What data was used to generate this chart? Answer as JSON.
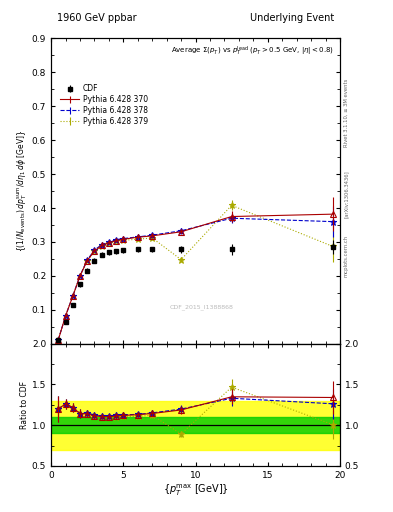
{
  "title_left": "1960 GeV ppbar",
  "title_right": "Underlying Event",
  "plot_title": "Average $\\Sigma(p_T)$ vs $p_T^{\\rm lead}$ ($p_T > 0.5$ GeV, $|\\eta| < 0.8$)",
  "xlabel": "$\\{p_T^{\\max}$ [GeV]$\\}$",
  "ylabel": "$\\{(1/N_{\\rm events})\\, dp_T^{\\rm sum}/d\\eta_1\\, d\\phi$ [GeV]$\\}$",
  "ylabel_ratio": "Ratio to CDF",
  "watermark": "CDF_2015_I1388868",
  "right_label": "Rivet 3.1.10, ≥ 3M events",
  "arxiv_label": "[arXiv:1306.3436]",
  "mcplots_label": "mcplots.cern.ch",
  "xlim": [
    0,
    20
  ],
  "ylim_main": [
    0,
    0.9
  ],
  "ylim_ratio": [
    0.5,
    2.0
  ],
  "cdf_x": [
    0.5,
    1.0,
    1.5,
    2.0,
    2.5,
    3.0,
    3.5,
    4.0,
    4.5,
    5.0,
    6.0,
    7.0,
    9.0,
    12.5,
    19.5
  ],
  "cdf_y": [
    0.01,
    0.065,
    0.115,
    0.175,
    0.215,
    0.245,
    0.262,
    0.27,
    0.273,
    0.275,
    0.278,
    0.278,
    0.278,
    0.278,
    0.285
  ],
  "cdf_yerr": [
    0.001,
    0.003,
    0.005,
    0.007,
    0.007,
    0.007,
    0.007,
    0.007,
    0.007,
    0.007,
    0.007,
    0.007,
    0.01,
    0.015,
    0.02
  ],
  "p370_x": [
    0.5,
    1.0,
    1.5,
    2.0,
    2.5,
    3.0,
    3.5,
    4.0,
    4.5,
    5.0,
    6.0,
    7.0,
    9.0,
    12.5,
    19.5
  ],
  "p370_y": [
    0.012,
    0.082,
    0.14,
    0.2,
    0.245,
    0.273,
    0.29,
    0.298,
    0.304,
    0.308,
    0.314,
    0.318,
    0.33,
    0.375,
    0.382
  ],
  "p370_yerr": [
    0.001,
    0.002,
    0.003,
    0.004,
    0.004,
    0.004,
    0.004,
    0.004,
    0.004,
    0.004,
    0.004,
    0.005,
    0.007,
    0.015,
    0.05
  ],
  "p378_x": [
    0.5,
    1.0,
    1.5,
    2.0,
    2.5,
    3.0,
    3.5,
    4.0,
    4.5,
    5.0,
    6.0,
    7.0,
    9.0,
    12.5,
    19.5
  ],
  "p378_y": [
    0.012,
    0.082,
    0.14,
    0.2,
    0.247,
    0.276,
    0.292,
    0.3,
    0.307,
    0.31,
    0.315,
    0.32,
    0.333,
    0.37,
    0.36
  ],
  "p378_yerr": [
    0.001,
    0.002,
    0.003,
    0.004,
    0.004,
    0.004,
    0.004,
    0.004,
    0.004,
    0.004,
    0.004,
    0.005,
    0.007,
    0.015,
    0.045
  ],
  "p379_x": [
    0.5,
    1.0,
    1.5,
    2.0,
    2.5,
    3.0,
    3.5,
    4.0,
    4.5,
    5.0,
    6.0,
    7.0,
    9.0,
    12.5,
    19.5
  ],
  "p379_y": [
    0.012,
    0.082,
    0.14,
    0.2,
    0.245,
    0.272,
    0.288,
    0.296,
    0.302,
    0.305,
    0.308,
    0.312,
    0.248,
    0.408,
    0.287
  ],
  "p379_yerr": [
    0.001,
    0.002,
    0.003,
    0.004,
    0.004,
    0.004,
    0.004,
    0.004,
    0.004,
    0.004,
    0.004,
    0.005,
    0.007,
    0.015,
    0.045
  ],
  "color_cdf": "#000000",
  "color_p370": "#aa0000",
  "color_p378": "#0000cc",
  "color_p379": "#aaaa00",
  "ratio_band_yellow_lo": 0.7,
  "ratio_band_yellow_hi": 1.3,
  "ratio_band_green_lo": 0.9,
  "ratio_band_green_hi": 1.1
}
